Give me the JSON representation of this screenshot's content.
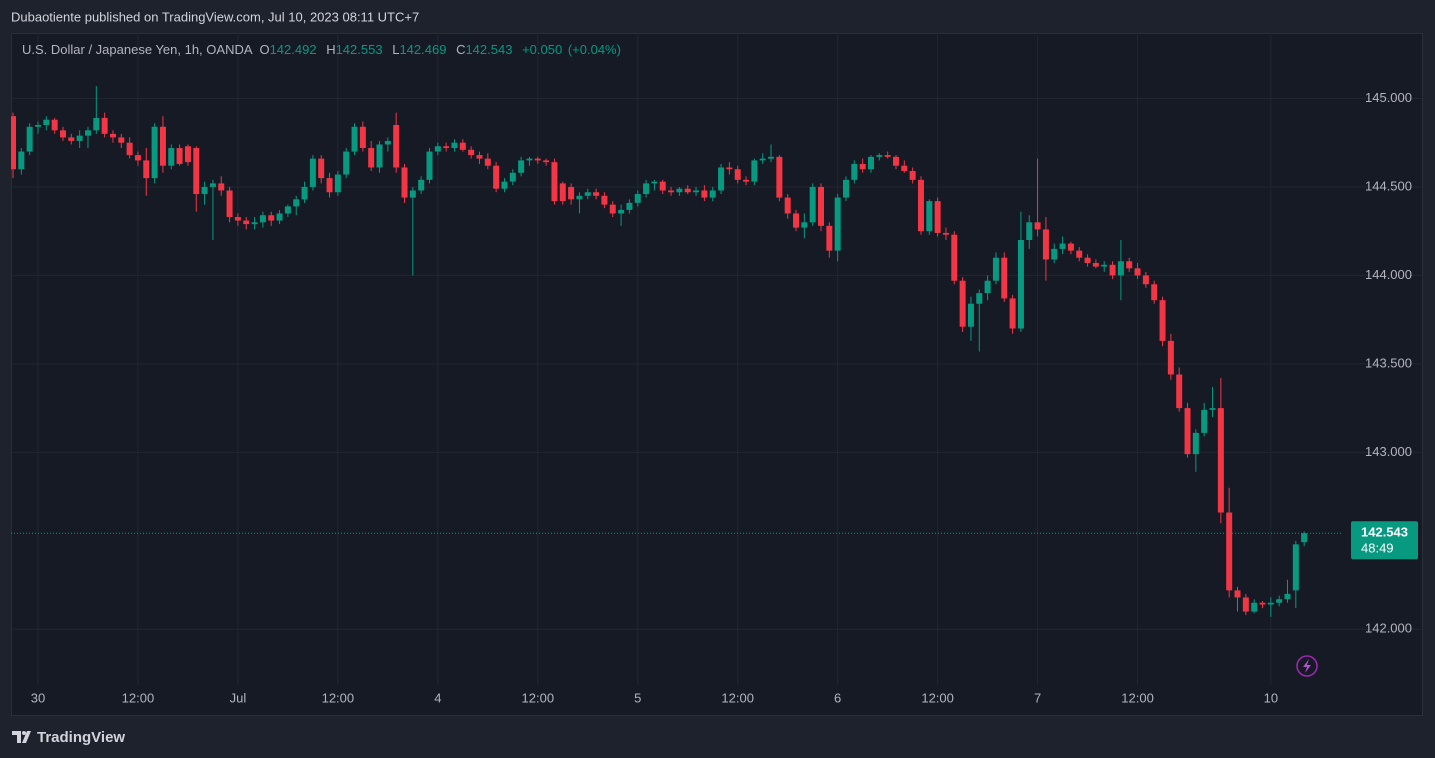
{
  "header": {
    "published": "Dubaotiente published on TradingView.com, Jul 10, 2023 08:11 UTC+7"
  },
  "chart_data": {
    "type": "candlestick",
    "symbol": "U.S. Dollar / Japanese Yen, 1h, OANDA",
    "ohlc_labels": [
      "O",
      "H",
      "L",
      "C"
    ],
    "change": "+0.050",
    "change_percent": "(+0.04%)",
    "countdown": "48:49",
    "up_color": "#089981",
    "down_color": "#f23645",
    "grid": true,
    "categories": [
      null,
      null,
      null,
      "30",
      null,
      null,
      null,
      null,
      null,
      null,
      null,
      null,
      null,
      null,
      null,
      "12:00",
      null,
      null,
      null,
      null,
      null,
      null,
      null,
      null,
      null,
      null,
      null,
      "Jul",
      null,
      null,
      null,
      null,
      null,
      null,
      null,
      null,
      null,
      null,
      null,
      "12:00",
      null,
      null,
      null,
      null,
      null,
      null,
      null,
      null,
      null,
      null,
      null,
      "4",
      null,
      null,
      null,
      null,
      null,
      null,
      null,
      null,
      null,
      null,
      null,
      "12:00",
      null,
      null,
      null,
      null,
      null,
      null,
      null,
      null,
      null,
      null,
      null,
      "5",
      null,
      null,
      null,
      null,
      null,
      null,
      null,
      null,
      null,
      null,
      null,
      "12:00",
      null,
      null,
      null,
      null,
      null,
      null,
      null,
      null,
      null,
      null,
      null,
      "6",
      null,
      null,
      null,
      null,
      null,
      null,
      null,
      null,
      null,
      null,
      null,
      "12:00",
      null,
      null,
      null,
      null,
      null,
      null,
      null,
      null,
      null,
      null,
      null,
      "7",
      null,
      null,
      null,
      null,
      null,
      null,
      null,
      null,
      null,
      null,
      null,
      "12:00",
      null,
      null,
      null,
      null,
      null,
      null,
      null,
      null,
      null,
      null,
      null,
      null,
      null,
      null,
      null,
      "10",
      null,
      null,
      null,
      null
    ],
    "open": [
      144.9,
      144.6,
      144.7,
      144.84,
      144.85,
      144.88,
      144.82,
      144.78,
      144.76,
      144.79,
      144.82,
      144.89,
      144.8,
      144.78,
      144.75,
      144.68,
      144.65,
      144.55,
      144.84,
      144.62,
      144.72,
      144.73,
      144.72,
      144.46,
      144.5,
      144.52,
      144.48,
      144.33,
      144.31,
      144.29,
      144.3,
      144.34,
      144.31,
      144.35,
      144.39,
      144.43,
      144.5,
      144.66,
      144.55,
      144.47,
      144.57,
      144.7,
      144.84,
      144.72,
      144.61,
      144.74,
      144.85,
      144.61,
      144.44,
      144.48,
      144.54,
      144.7,
      144.73,
      144.72,
      144.75,
      144.71,
      144.68,
      144.66,
      144.62,
      144.49,
      144.53,
      144.58,
      144.65,
      144.66,
      144.65,
      144.64,
      144.52,
      144.5,
      144.43,
      144.45,
      144.47,
      144.45,
      144.4,
      144.35,
      144.37,
      144.41,
      144.46,
      144.52,
      144.53,
      144.48,
      144.47,
      144.49,
      144.47,
      144.48,
      144.44,
      144.48,
      144.61,
      144.6,
      144.54,
      144.53,
      144.65,
      144.66,
      144.67,
      144.44,
      144.35,
      144.27,
      144.3,
      144.5,
      144.28,
      144.14,
      144.44,
      144.54,
      144.63,
      144.6,
      144.67,
      144.68,
      144.67,
      144.62,
      144.59,
      144.54,
      144.25,
      144.42,
      144.24,
      144.23,
      143.97,
      143.71,
      143.84,
      143.9,
      143.97,
      144.1,
      143.87,
      143.7,
      144.2,
      144.3,
      144.26,
      144.09,
      144.15,
      144.18,
      144.14,
      144.1,
      144.07,
      144.05,
      144.06,
      144.0,
      144.08,
      144.04,
      144.0,
      143.95,
      143.86,
      143.63,
      143.44,
      143.25,
      142.99,
      143.11,
      143.24,
      143.25,
      142.66,
      142.22,
      142.18,
      142.1,
      142.15,
      142.14,
      142.15,
      142.17,
      142.22,
      142.492
    ],
    "high": [
      144.92,
      144.72,
      144.86,
      144.87,
      144.9,
      144.89,
      144.84,
      144.8,
      144.82,
      144.84,
      145.07,
      144.92,
      144.82,
      144.8,
      144.78,
      144.7,
      144.72,
      144.86,
      144.9,
      144.74,
      144.74,
      144.74,
      144.73,
      144.53,
      144.54,
      144.56,
      144.5,
      144.35,
      144.33,
      144.33,
      144.36,
      144.36,
      144.37,
      144.4,
      144.45,
      144.53,
      144.68,
      144.68,
      144.58,
      144.59,
      144.72,
      144.86,
      144.87,
      144.76,
      144.76,
      144.78,
      144.92,
      144.63,
      144.5,
      144.56,
      144.72,
      144.75,
      144.75,
      144.77,
      144.77,
      144.73,
      144.7,
      144.69,
      144.64,
      144.55,
      144.6,
      144.67,
      144.67,
      144.67,
      144.66,
      144.66,
      144.53,
      144.52,
      144.47,
      144.49,
      144.49,
      144.47,
      144.42,
      144.4,
      144.43,
      144.48,
      144.54,
      144.54,
      144.54,
      144.5,
      144.5,
      144.51,
      144.5,
      144.51,
      144.5,
      144.63,
      144.64,
      144.62,
      144.56,
      144.66,
      144.69,
      144.74,
      144.68,
      144.46,
      144.37,
      144.35,
      144.52,
      144.52,
      144.3,
      144.46,
      144.56,
      144.65,
      144.66,
      144.68,
      144.69,
      144.7,
      144.68,
      144.65,
      144.61,
      144.56,
      144.43,
      144.44,
      144.27,
      144.25,
      143.99,
      143.88,
      143.92,
      144.0,
      144.13,
      144.13,
      143.89,
      144.36,
      144.34,
      144.66,
      144.33,
      144.18,
      144.22,
      144.19,
      144.16,
      144.12,
      144.09,
      144.08,
      144.08,
      144.2,
      144.1,
      144.07,
      144.02,
      143.97,
      143.88,
      143.67,
      143.48,
      143.28,
      143.13,
      143.28,
      143.37,
      143.42,
      142.8,
      142.24,
      142.2,
      142.17,
      142.16,
      142.18,
      142.19,
      142.28,
      142.5,
      142.553
    ],
    "low": [
      144.55,
      144.57,
      144.68,
      144.8,
      144.82,
      144.8,
      144.76,
      144.74,
      144.72,
      144.72,
      144.8,
      144.78,
      144.75,
      144.72,
      144.66,
      144.62,
      144.45,
      144.52,
      144.58,
      144.6,
      144.62,
      144.62,
      144.36,
      144.4,
      144.2,
      144.45,
      144.3,
      144.28,
      144.26,
      144.26,
      144.27,
      144.28,
      144.29,
      144.33,
      144.34,
      144.41,
      144.48,
      144.52,
      144.44,
      144.45,
      144.55,
      144.68,
      144.7,
      144.59,
      144.58,
      144.7,
      144.58,
      144.41,
      144.0,
      144.46,
      144.52,
      144.68,
      144.7,
      144.7,
      144.7,
      144.66,
      144.63,
      144.6,
      144.47,
      144.47,
      144.51,
      144.56,
      144.62,
      144.63,
      144.62,
      144.4,
      144.4,
      144.4,
      144.35,
      144.43,
      144.43,
      144.38,
      144.33,
      144.28,
      144.35,
      144.39,
      144.44,
      144.48,
      144.46,
      144.45,
      144.45,
      144.46,
      144.45,
      144.42,
      144.42,
      144.46,
      144.57,
      144.52,
      144.51,
      144.51,
      144.63,
      144.64,
      144.42,
      144.32,
      144.25,
      144.21,
      144.28,
      144.25,
      144.1,
      144.08,
      144.42,
      144.52,
      144.58,
      144.58,
      144.65,
      144.66,
      144.6,
      144.58,
      144.52,
      144.23,
      144.23,
      144.22,
      144.2,
      143.95,
      143.68,
      143.63,
      143.57,
      143.86,
      143.95,
      143.85,
      143.67,
      143.68,
      144.15,
      144.22,
      143.97,
      144.07,
      144.12,
      144.12,
      144.08,
      144.05,
      144.04,
      144.02,
      143.98,
      143.86,
      144.02,
      143.98,
      143.93,
      143.84,
      143.6,
      143.41,
      143.23,
      142.97,
      142.89,
      143.09,
      143.2,
      142.6,
      142.18,
      142.1,
      142.08,
      142.09,
      142.12,
      142.07,
      142.13,
      142.15,
      142.12,
      142.469
    ],
    "close": [
      144.6,
      144.7,
      144.84,
      144.85,
      144.88,
      144.82,
      144.78,
      144.76,
      144.79,
      144.82,
      144.89,
      144.8,
      144.78,
      144.75,
      144.68,
      144.65,
      144.55,
      144.84,
      144.62,
      144.72,
      144.63,
      144.64,
      144.46,
      144.5,
      144.52,
      144.48,
      144.33,
      144.31,
      144.29,
      144.3,
      144.34,
      144.31,
      144.35,
      144.39,
      144.43,
      144.5,
      144.66,
      144.55,
      144.47,
      144.57,
      144.7,
      144.84,
      144.72,
      144.61,
      144.74,
      144.76,
      144.61,
      144.44,
      144.48,
      144.54,
      144.7,
      144.73,
      144.72,
      144.75,
      144.71,
      144.68,
      144.66,
      144.62,
      144.49,
      144.53,
      144.58,
      144.65,
      144.66,
      144.65,
      144.64,
      144.42,
      144.42,
      144.43,
      144.45,
      144.47,
      144.45,
      144.4,
      144.35,
      144.37,
      144.41,
      144.46,
      144.52,
      144.53,
      144.48,
      144.47,
      144.49,
      144.47,
      144.48,
      144.44,
      144.48,
      144.61,
      144.6,
      144.54,
      144.53,
      144.65,
      144.66,
      144.67,
      144.44,
      144.35,
      144.27,
      144.3,
      144.5,
      144.28,
      144.14,
      144.44,
      144.54,
      144.63,
      144.6,
      144.67,
      144.68,
      144.67,
      144.62,
      144.59,
      144.54,
      144.25,
      144.42,
      144.24,
      144.23,
      143.97,
      143.71,
      143.84,
      143.9,
      143.97,
      144.1,
      143.87,
      143.7,
      144.2,
      144.3,
      144.26,
      144.09,
      144.15,
      144.18,
      144.14,
      144.1,
      144.07,
      144.05,
      144.06,
      144.0,
      144.08,
      144.04,
      144.0,
      143.95,
      143.86,
      143.63,
      143.44,
      143.25,
      142.99,
      143.11,
      143.24,
      143.25,
      142.66,
      142.22,
      142.18,
      142.1,
      142.15,
      142.14,
      142.15,
      142.17,
      142.2,
      142.48,
      142.543
    ],
    "ylim": [
      141.51,
      145.37
    ],
    "yticks": [
      {
        "value": 142,
        "label": "142.000"
      },
      {
        "value": 143,
        "label": "143.000"
      },
      {
        "value": 143.5,
        "label": "143.500"
      },
      {
        "value": 144,
        "label": "144.000"
      },
      {
        "value": 144.5,
        "label": "144.500"
      },
      {
        "value": 145,
        "label": "145.000"
      }
    ]
  },
  "footer": {
    "brand": "TradingView"
  }
}
